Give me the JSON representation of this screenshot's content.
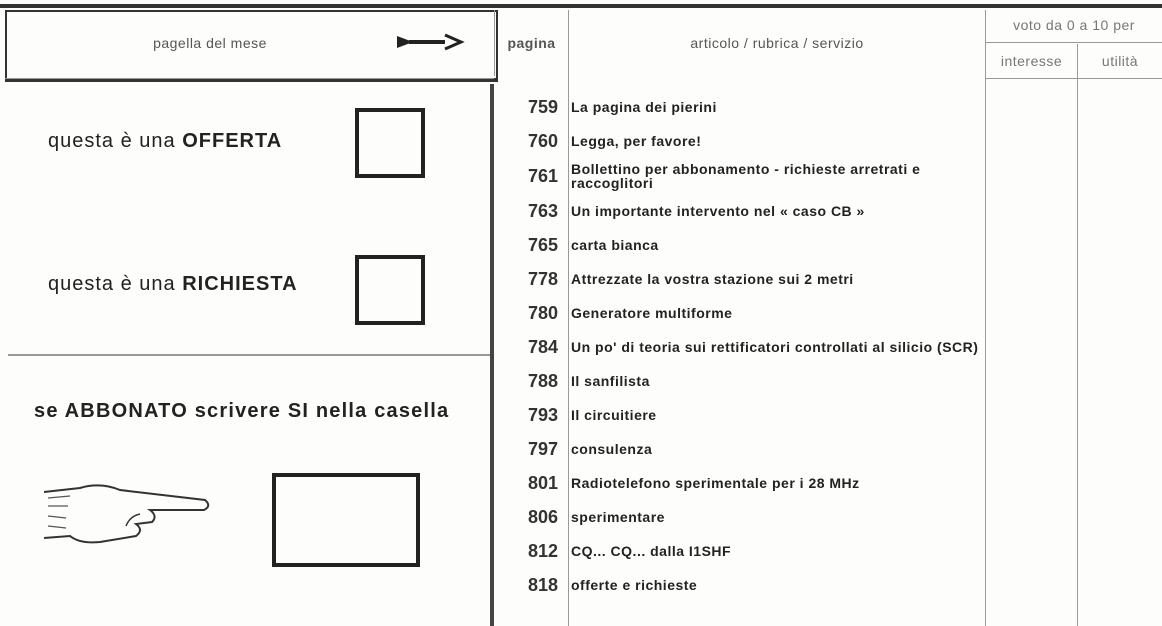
{
  "header": {
    "left_title": "pagella del mese",
    "page_col": "pagina",
    "article_col": "articolo / rubrica / servizio",
    "vote_title": "voto da 0 a 10 per",
    "vote_cols": [
      "interesse",
      "utilità"
    ]
  },
  "left": {
    "offer": {
      "prefix": "questa è una",
      "word": "OFFERTA"
    },
    "request": {
      "prefix": "questa è una",
      "word": "RICHIESTA"
    },
    "subscriber": "se ABBONATO scrivere SI nella casella"
  },
  "rows": [
    {
      "page": "759",
      "title": "La pagina dei pierini"
    },
    {
      "page": "760",
      "title": "Legga, per favore!"
    },
    {
      "page": "761",
      "title": "Bollettino per abbonamento - richieste arretrati e raccoglitori"
    },
    {
      "page": "763",
      "title": "Un importante intervento nel « caso CB »"
    },
    {
      "page": "765",
      "title": "carta bianca"
    },
    {
      "page": "778",
      "title": "Attrezzate la vostra stazione sui 2 metri"
    },
    {
      "page": "780",
      "title": "Generatore multiforme"
    },
    {
      "page": "784",
      "title": "Un po' di teoria sui rettificatori controllati al silicio (SCR)"
    },
    {
      "page": "788",
      "title": "Il sanfilista"
    },
    {
      "page": "793",
      "title": "Il circuitiere"
    },
    {
      "page": "797",
      "title": "consulenza"
    },
    {
      "page": "801",
      "title": "Radiotelefono sperimentale per i 28 MHz"
    },
    {
      "page": "806",
      "title": "sperimentare"
    },
    {
      "page": "812",
      "title": "CQ... CQ... dalla I1SHF"
    },
    {
      "page": "818",
      "title": "offerte e richieste"
    }
  ]
}
